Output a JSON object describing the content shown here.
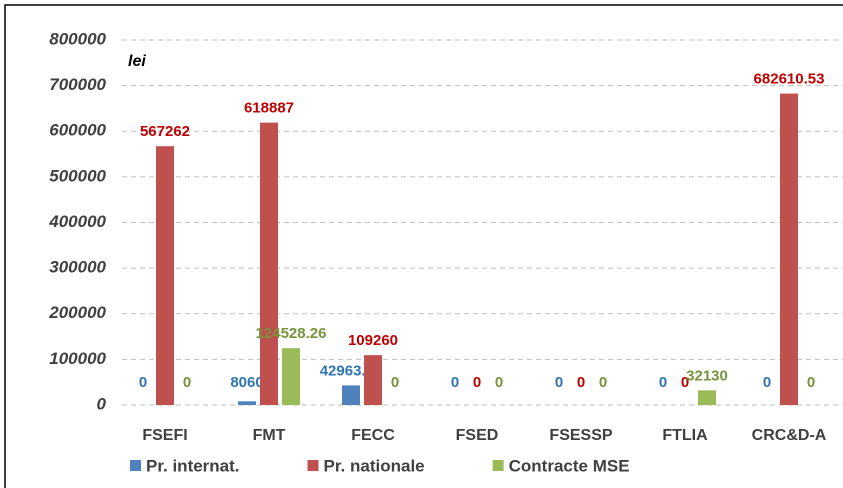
{
  "chart_data": {
    "type": "bar",
    "y_label": "lei",
    "categories": [
      "FSEFI",
      "FMT",
      "FECC",
      "FSED",
      "FSESSP",
      "FTLIA",
      "CRC&D-A"
    ],
    "series": [
      {
        "name": "Pr. internat.",
        "color": "#4f81bd",
        "label_color": "#2e75b6",
        "values": [
          0,
          8060,
          42963.68,
          0,
          0,
          0,
          0
        ]
      },
      {
        "name": "Pr. nationale",
        "color": "#c0504d",
        "label_color": "#c00000",
        "values": [
          567262,
          618887,
          109260,
          0,
          0,
          0,
          682610.53
        ]
      },
      {
        "name": "Contracte MSE",
        "color": "#9bbb59",
        "label_color": "#77933c",
        "values": [
          0,
          124528.26,
          0,
          0,
          0,
          32130,
          0
        ]
      }
    ],
    "ylim": [
      0,
      800000
    ],
    "yticks": [
      0,
      100000,
      200000,
      300000,
      400000,
      500000,
      600000,
      700000,
      800000
    ],
    "grid": true
  }
}
